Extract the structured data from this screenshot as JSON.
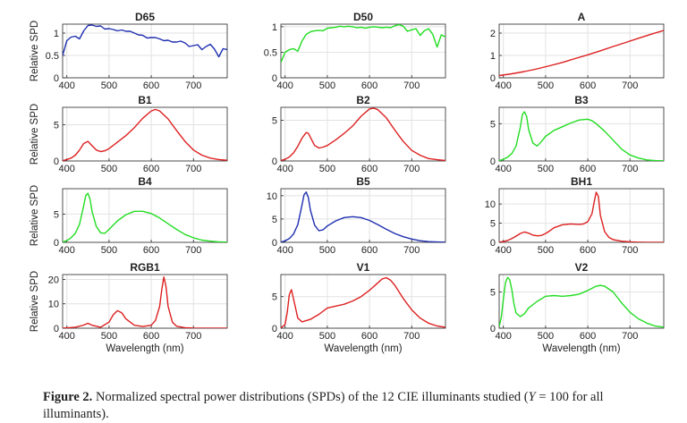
{
  "chart_data": [
    {
      "type": "line",
      "title": "D65",
      "ylabel": "Relative SPD",
      "xlabel": "",
      "color": "#1f2fb0",
      "xlim": [
        390,
        780
      ],
      "ylim": [
        0,
        1.2
      ],
      "xticks": [
        400,
        500,
        600,
        700
      ],
      "yticks": [
        0,
        0.5,
        1
      ],
      "ytick_labels": [
        "0",
        "0.5",
        "1"
      ],
      "x": [
        390,
        400,
        410,
        420,
        430,
        440,
        450,
        460,
        470,
        480,
        490,
        500,
        510,
        520,
        530,
        540,
        550,
        560,
        570,
        580,
        590,
        600,
        610,
        620,
        630,
        640,
        650,
        660,
        670,
        680,
        690,
        700,
        710,
        720,
        730,
        740,
        750,
        760,
        770,
        780
      ],
      "y": [
        0.5,
        0.83,
        0.91,
        0.93,
        0.87,
        1.05,
        1.17,
        1.18,
        1.15,
        1.16,
        1.09,
        1.1,
        1.08,
        1.05,
        1.07,
        1.04,
        1.04,
        1.0,
        0.96,
        0.95,
        0.89,
        0.9,
        0.9,
        0.87,
        0.83,
        0.84,
        0.8,
        0.8,
        0.82,
        0.78,
        0.7,
        0.72,
        0.74,
        0.63,
        0.7,
        0.75,
        0.64,
        0.47,
        0.65,
        0.63
      ]
    },
    {
      "type": "line",
      "title": "D50",
      "ylabel": "",
      "xlabel": "",
      "color": "#22dd22",
      "xlim": [
        390,
        780
      ],
      "ylim": [
        0,
        1.05
      ],
      "xticks": [
        400,
        500,
        600,
        700
      ],
      "yticks": [
        0,
        0.5,
        1
      ],
      "ytick_labels": [
        "0",
        "0.5",
        "1"
      ],
      "x": [
        390,
        400,
        410,
        420,
        430,
        440,
        450,
        460,
        470,
        480,
        490,
        500,
        510,
        520,
        530,
        540,
        550,
        560,
        570,
        580,
        590,
        600,
        610,
        620,
        630,
        640,
        650,
        660,
        670,
        680,
        690,
        700,
        710,
        720,
        730,
        740,
        750,
        760,
        770,
        780
      ],
      "y": [
        0.3,
        0.5,
        0.55,
        0.57,
        0.52,
        0.72,
        0.85,
        0.9,
        0.92,
        0.93,
        0.92,
        0.97,
        0.98,
        0.99,
        1.01,
        1.0,
        1.01,
        1.0,
        0.98,
        0.99,
        0.97,
        0.99,
        1.0,
        0.99,
        0.98,
        0.99,
        0.98,
        1.02,
        1.04,
        1.01,
        0.91,
        0.94,
        0.96,
        0.83,
        0.92,
        0.96,
        0.85,
        0.6,
        0.84,
        0.8
      ]
    },
    {
      "type": "line",
      "title": "A",
      "ylabel": "",
      "xlabel": "",
      "color": "#dd2020",
      "xlim": [
        390,
        780
      ],
      "ylim": [
        0,
        2.4
      ],
      "xticks": [
        400,
        500,
        600,
        700
      ],
      "yticks": [
        0,
        1,
        2
      ],
      "ytick_labels": [
        "0",
        "1",
        "2"
      ],
      "x": [
        390,
        420,
        450,
        480,
        510,
        540,
        570,
        600,
        630,
        660,
        690,
        720,
        750,
        780
      ],
      "y": [
        0.1,
        0.18,
        0.28,
        0.4,
        0.54,
        0.69,
        0.86,
        1.03,
        1.21,
        1.4,
        1.58,
        1.77,
        1.95,
        2.12
      ]
    },
    {
      "type": "line",
      "title": "B1",
      "ylabel": "Relative SPD",
      "xlabel": "",
      "color": "#dd2020",
      "xlim": [
        390,
        780
      ],
      "ylim": [
        0,
        7.4
      ],
      "xticks": [
        400,
        500,
        600,
        700
      ],
      "yticks": [
        0,
        5
      ],
      "ytick_labels": [
        "0",
        "5"
      ],
      "x": [
        390,
        400,
        410,
        420,
        430,
        440,
        450,
        460,
        470,
        480,
        490,
        500,
        520,
        540,
        560,
        580,
        600,
        610,
        620,
        640,
        660,
        680,
        700,
        720,
        740,
        760,
        780
      ],
      "y": [
        0.05,
        0.2,
        0.4,
        0.8,
        1.5,
        2.4,
        2.7,
        2.1,
        1.5,
        1.3,
        1.4,
        1.7,
        2.6,
        3.5,
        4.6,
        5.9,
        6.9,
        7.1,
        6.9,
        5.8,
        4.2,
        2.7,
        1.5,
        0.8,
        0.4,
        0.2,
        0.1
      ]
    },
    {
      "type": "line",
      "title": "B2",
      "ylabel": "",
      "xlabel": "",
      "color": "#dd2020",
      "xlim": [
        390,
        780
      ],
      "ylim": [
        0,
        6.6
      ],
      "xticks": [
        400,
        500,
        600,
        700
      ],
      "yticks": [
        0,
        5
      ],
      "ytick_labels": [
        "0",
        "5"
      ],
      "x": [
        390,
        400,
        410,
        420,
        430,
        440,
        450,
        455,
        460,
        470,
        480,
        490,
        500,
        520,
        540,
        560,
        580,
        600,
        610,
        620,
        640,
        660,
        680,
        700,
        720,
        740,
        760,
        780
      ],
      "y": [
        0.05,
        0.2,
        0.5,
        1.0,
        1.8,
        2.8,
        3.5,
        3.4,
        2.9,
        1.9,
        1.6,
        1.7,
        1.9,
        2.6,
        3.4,
        4.3,
        5.5,
        6.4,
        6.5,
        6.3,
        5.3,
        3.8,
        2.4,
        1.3,
        0.7,
        0.3,
        0.15,
        0.05
      ]
    },
    {
      "type": "line",
      "title": "B3",
      "ylabel": "",
      "xlabel": "",
      "color": "#22dd22",
      "xlim": [
        390,
        780
      ],
      "ylim": [
        0,
        7.2
      ],
      "xticks": [
        400,
        500,
        600,
        700
      ],
      "yticks": [
        0,
        5
      ],
      "ytick_labels": [
        "0",
        "5"
      ],
      "x": [
        390,
        400,
        410,
        420,
        430,
        440,
        445,
        450,
        455,
        460,
        470,
        480,
        490,
        500,
        520,
        540,
        560,
        580,
        600,
        610,
        620,
        640,
        660,
        680,
        700,
        720,
        740,
        760,
        780
      ],
      "y": [
        0.05,
        0.2,
        0.5,
        1.0,
        2.0,
        4.5,
        6.2,
        6.6,
        6.0,
        4.2,
        2.4,
        2.0,
        2.6,
        3.3,
        4.1,
        4.6,
        5.1,
        5.5,
        5.6,
        5.4,
        5.0,
        4.0,
        2.8,
        1.6,
        0.8,
        0.4,
        0.15,
        0.05,
        0.02
      ]
    },
    {
      "type": "line",
      "title": "B4",
      "ylabel": "Relative SPD",
      "xlabel": "",
      "color": "#22dd22",
      "xlim": [
        390,
        780
      ],
      "ylim": [
        0,
        9.5
      ],
      "xticks": [
        400,
        500,
        600,
        700
      ],
      "yticks": [
        0,
        5
      ],
      "ytick_labels": [
        "0",
        "5"
      ],
      "x": [
        390,
        400,
        410,
        420,
        430,
        440,
        445,
        450,
        455,
        460,
        470,
        480,
        490,
        500,
        520,
        540,
        560,
        580,
        600,
        620,
        640,
        660,
        680,
        700,
        720,
        740,
        760,
        780
      ],
      "y": [
        0.05,
        0.3,
        0.8,
        1.6,
        3.2,
        6.5,
        8.3,
        8.7,
        7.6,
        5.4,
        2.8,
        1.7,
        1.6,
        2.3,
        3.8,
        4.9,
        5.5,
        5.5,
        5.1,
        4.3,
        3.3,
        2.3,
        1.4,
        0.8,
        0.4,
        0.2,
        0.08,
        0.03
      ]
    },
    {
      "type": "line",
      "title": "B5",
      "ylabel": "",
      "xlabel": "",
      "color": "#1f2fb0",
      "xlim": [
        390,
        780
      ],
      "ylim": [
        0,
        11.5
      ],
      "xticks": [
        400,
        500,
        600,
        700
      ],
      "yticks": [
        0,
        5,
        10
      ],
      "ytick_labels": [
        "0",
        "5",
        "10"
      ],
      "x": [
        390,
        400,
        410,
        420,
        430,
        440,
        445,
        450,
        455,
        460,
        470,
        480,
        490,
        500,
        520,
        540,
        560,
        580,
        600,
        620,
        640,
        660,
        680,
        700,
        720,
        740,
        760,
        780
      ],
      "y": [
        0.05,
        0.3,
        0.8,
        1.8,
        3.8,
        8.0,
        10.2,
        10.8,
        9.6,
        6.9,
        3.7,
        2.5,
        2.7,
        3.5,
        4.6,
        5.3,
        5.5,
        5.3,
        4.7,
        3.8,
        2.8,
        1.9,
        1.2,
        0.7,
        0.35,
        0.15,
        0.07,
        0.03
      ]
    },
    {
      "type": "line",
      "title": "BH1",
      "ylabel": "",
      "xlabel": "",
      "color": "#dd2020",
      "xlim": [
        390,
        780
      ],
      "ylim": [
        0,
        14
      ],
      "xticks": [
        400,
        500,
        600,
        700
      ],
      "yticks": [
        0,
        5,
        10
      ],
      "ytick_labels": [
        "0",
        "5",
        "10"
      ],
      "x": [
        390,
        400,
        410,
        420,
        430,
        440,
        450,
        460,
        470,
        480,
        490,
        500,
        510,
        520,
        540,
        560,
        580,
        590,
        600,
        610,
        615,
        620,
        625,
        630,
        640,
        650,
        660,
        680,
        700,
        720,
        740,
        760,
        780
      ],
      "y": [
        0.05,
        0.2,
        0.5,
        1.0,
        1.6,
        2.3,
        2.7,
        2.4,
        1.9,
        1.7,
        1.8,
        2.3,
        3.0,
        3.8,
        4.6,
        4.8,
        4.7,
        4.8,
        5.4,
        7.5,
        10.5,
        13.1,
        12.0,
        7.0,
        2.8,
        1.3,
        0.7,
        0.3,
        0.12,
        0.05,
        0.02,
        0.01,
        0.01
      ]
    },
    {
      "type": "line",
      "title": "RGB1",
      "ylabel": "Relative SPD",
      "xlabel": "Wavelength (nm)",
      "color": "#dd2020",
      "xlim": [
        390,
        780
      ],
      "ylim": [
        0,
        22
      ],
      "xticks": [
        400,
        500,
        600,
        700
      ],
      "yticks": [
        0,
        10,
        20
      ],
      "ytick_labels": [
        "0",
        "10",
        "20"
      ],
      "x": [
        390,
        420,
        440,
        450,
        460,
        480,
        500,
        510,
        520,
        530,
        540,
        560,
        580,
        600,
        610,
        620,
        625,
        630,
        635,
        640,
        650,
        660,
        680,
        700,
        740,
        780
      ],
      "y": [
        0.05,
        0.4,
        1.3,
        2.0,
        1.2,
        0.4,
        2.5,
        5.5,
        7.2,
        6.3,
        3.8,
        1.2,
        0.7,
        1.2,
        3.2,
        9.0,
        16.0,
        21.0,
        17.0,
        9.0,
        2.5,
        0.8,
        0.2,
        0.08,
        0.02,
        0.01
      ]
    },
    {
      "type": "line",
      "title": "V1",
      "ylabel": "",
      "xlabel": "Wavelength (nm)",
      "color": "#dd2020",
      "xlim": [
        390,
        780
      ],
      "ylim": [
        0,
        8.5
      ],
      "xticks": [
        400,
        500,
        600,
        700
      ],
      "yticks": [
        0,
        5
      ],
      "ytick_labels": [
        "0",
        "5"
      ],
      "x": [
        390,
        400,
        405,
        410,
        415,
        420,
        430,
        440,
        460,
        480,
        500,
        520,
        540,
        560,
        580,
        600,
        620,
        630,
        640,
        650,
        660,
        680,
        700,
        720,
        740,
        760,
        780
      ],
      "y": [
        0.05,
        0.6,
        2.5,
        5.3,
        6.1,
        4.6,
        1.6,
        1.0,
        1.4,
        2.2,
        3.2,
        3.5,
        3.8,
        4.3,
        5.0,
        6.0,
        7.2,
        7.8,
        8.0,
        7.6,
        6.8,
        4.7,
        2.9,
        1.6,
        0.8,
        0.35,
        0.15
      ]
    },
    {
      "type": "line",
      "title": "V2",
      "ylabel": "",
      "xlabel": "Wavelength (nm)",
      "color": "#22dd22",
      "xlim": [
        390,
        780
      ],
      "ylim": [
        0,
        7.4
      ],
      "xticks": [
        400,
        500,
        600,
        700
      ],
      "yticks": [
        0,
        5
      ],
      "ytick_labels": [
        "0",
        "5"
      ],
      "x": [
        390,
        395,
        400,
        405,
        410,
        415,
        420,
        425,
        430,
        440,
        450,
        460,
        480,
        500,
        520,
        540,
        560,
        580,
        600,
        620,
        630,
        640,
        660,
        680,
        700,
        720,
        740,
        760,
        780
      ],
      "y": [
        0.2,
        1.5,
        4.0,
        6.3,
        7.0,
        6.7,
        5.3,
        3.4,
        2.1,
        1.6,
        2.0,
        2.8,
        3.7,
        4.4,
        4.5,
        4.4,
        4.5,
        4.7,
        5.2,
        5.8,
        5.9,
        5.8,
        5.0,
        3.5,
        2.2,
        1.3,
        0.7,
        0.3,
        0.15
      ]
    }
  ],
  "caption": {
    "label": "Figure 2.",
    "text_before": " Normalized spectral power distributions (SPDs) of the 12 CIE illuminants studied (",
    "var": "Y",
    "text_after": " = 100 for all illuminants)."
  }
}
